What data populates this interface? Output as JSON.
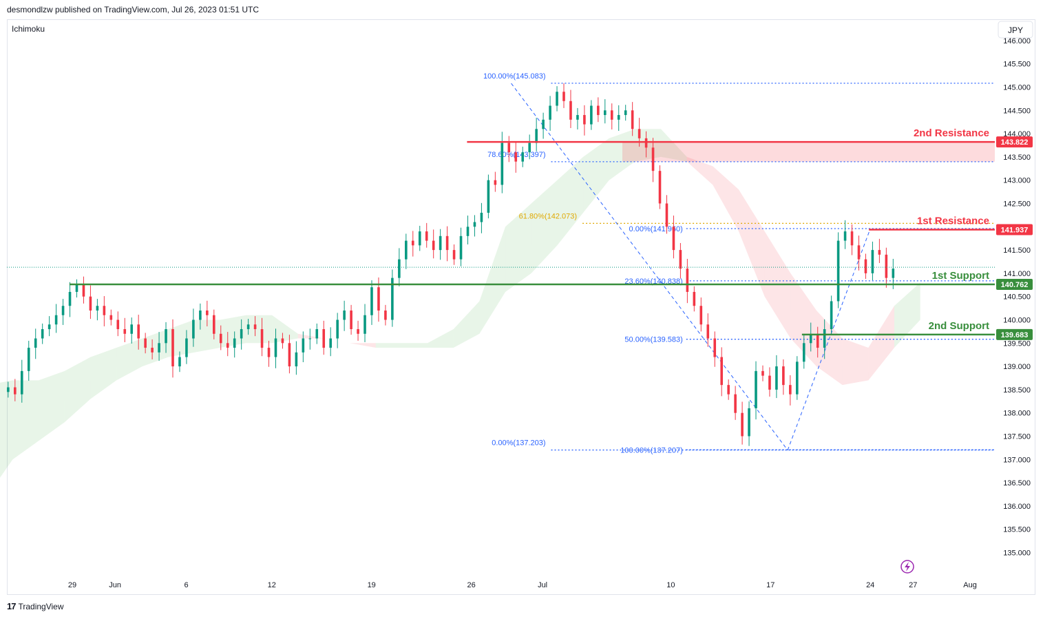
{
  "header": {
    "attribution": "desmondlzw published on TradingView.com, Jul 26, 2023 01:51 UTC"
  },
  "footer": {
    "brand": "TradingView",
    "logo": "17"
  },
  "chart_data": {
    "type": "candlestick",
    "indicator": "Ichimoku",
    "currency": "JPY",
    "ylim": [
      134.5,
      146.3
    ],
    "y_ticks": [
      "135.000",
      "135.500",
      "136.000",
      "136.500",
      "137.000",
      "137.500",
      "138.000",
      "138.500",
      "139.000",
      "139.500",
      "140.000",
      "140.500",
      "141.000",
      "141.500",
      "142.000",
      "142.500",
      "143.000",
      "143.500",
      "144.000",
      "144.500",
      "145.000",
      "145.500",
      "146.000"
    ],
    "x_ticks": [
      {
        "label": "29",
        "day": 0
      },
      {
        "label": "Jun",
        "day": 3
      },
      {
        "label": "6",
        "day": 8
      },
      {
        "label": "12",
        "day": 14
      },
      {
        "label": "19",
        "day": 21
      },
      {
        "label": "26",
        "day": 28
      },
      {
        "label": "Jul",
        "day": 33
      },
      {
        "label": "10",
        "day": 42
      },
      {
        "label": "17",
        "day": 49
      },
      {
        "label": "24",
        "day": 56
      },
      {
        "label": "27",
        "day": 59
      },
      {
        "label": "Aug",
        "day": 63
      }
    ],
    "last_price": 141.13,
    "levels": [
      {
        "name": "2nd Resistance",
        "value": 143.822,
        "badge": "143.822",
        "color": "#f23645"
      },
      {
        "name": "1st Resistance",
        "value": 141.937,
        "badge": "141.937",
        "color": "#f23645"
      },
      {
        "name": "1st Support",
        "value": 140.762,
        "badge": "140.762",
        "color": "#388e3c"
      },
      {
        "name": "2nd Support",
        "value": 139.683,
        "badge": "139.683",
        "color": "#388e3c"
      }
    ],
    "fib_down": [
      {
        "label": "100.00%(145.083)",
        "value": 145.083,
        "color": "#2962ff"
      },
      {
        "label": "78.60%(143.397)",
        "value": 143.397,
        "color": "#2962ff"
      },
      {
        "label": "61.80%(142.073)",
        "value": 142.073,
        "color": "#e0a800"
      },
      {
        "label": "0.00%(137.203)",
        "value": 137.203,
        "color": "#2962ff"
      }
    ],
    "fib_up": [
      {
        "label": "0.00%(141.960)",
        "value": 141.96,
        "color": "#2962ff"
      },
      {
        "label": "23.60%(140.838)",
        "value": 140.838,
        "color": "#2962ff"
      },
      {
        "label": "50.00%(139.583)",
        "value": 139.583,
        "color": "#2962ff"
      },
      {
        "label": "100.00%(137.207)",
        "value": 137.207,
        "color": "#2962ff"
      }
    ],
    "zigzag": [
      {
        "day": 30.8,
        "value": 145.08
      },
      {
        "day": 50.2,
        "value": 137.2
      },
      {
        "day": 56.0,
        "value": 141.96
      }
    ],
    "closes": [
      138.55,
      138.4,
      138.9,
      139.4,
      139.6,
      139.8,
      139.9,
      140.1,
      140.3,
      140.6,
      140.75,
      140.5,
      140.2,
      140.3,
      140.1,
      140.0,
      139.8,
      139.7,
      139.9,
      139.6,
      139.4,
      139.3,
      139.5,
      139.8,
      139.0,
      139.2,
      139.6,
      140.0,
      140.2,
      140.1,
      139.7,
      139.5,
      139.4,
      139.6,
      139.8,
      139.9,
      139.8,
      139.4,
      139.2,
      139.6,
      139.5,
      139.0,
      139.3,
      139.6,
      139.6,
      139.8,
      139.4,
      139.6,
      140.0,
      140.2,
      139.8,
      139.7,
      140.1,
      140.7,
      140.2,
      140.0,
      140.9,
      141.3,
      141.7,
      141.6,
      141.9,
      141.7,
      141.5,
      141.8,
      141.5,
      141.3,
      141.8,
      142.0,
      142.1,
      142.3,
      143.0,
      142.9,
      143.8,
      143.6,
      143.4,
      143.6,
      143.8,
      144.1,
      144.3,
      144.6,
      144.9,
      144.7,
      144.3,
      144.4,
      144.2,
      144.6,
      144.4,
      144.5,
      144.3,
      144.4,
      144.5,
      144.1,
      143.9,
      143.7,
      143.2,
      142.5,
      142.0,
      141.5,
      141.1,
      140.6,
      140.3,
      139.9,
      139.6,
      139.2,
      138.6,
      138.4,
      138.0,
      137.5,
      138.1,
      138.9,
      138.8,
      138.5,
      139.0,
      138.6,
      138.4,
      139.1,
      139.5,
      139.7,
      139.4,
      139.8,
      140.4,
      141.7,
      141.9,
      141.6,
      141.3,
      141.0,
      141.5,
      141.4,
      140.9,
      141.1
    ],
    "cloud": {
      "start_day": -6,
      "end_day": 59.5,
      "spans": [
        [
          136.2,
          138.6,
          "g"
        ],
        [
          137.0,
          138.7,
          "g"
        ],
        [
          137.4,
          138.7,
          "g"
        ],
        [
          137.8,
          138.9,
          "g"
        ],
        [
          138.3,
          139.2,
          "g"
        ],
        [
          138.7,
          139.4,
          "g"
        ],
        [
          139.0,
          139.6,
          "g"
        ],
        [
          139.2,
          139.8,
          "g"
        ],
        [
          139.3,
          140.0,
          "g"
        ],
        [
          139.4,
          140.0,
          "g"
        ],
        [
          139.5,
          140.1,
          "g"
        ],
        [
          139.5,
          140.1,
          "g"
        ],
        [
          139.6,
          139.7,
          "r"
        ],
        [
          139.6,
          139.6,
          "r"
        ],
        [
          139.5,
          139.5,
          "r"
        ],
        [
          139.4,
          139.5,
          "g"
        ],
        [
          139.4,
          139.5,
          "g"
        ],
        [
          139.4,
          139.5,
          "g"
        ],
        [
          139.4,
          139.8,
          "g"
        ],
        [
          139.7,
          140.4,
          "g"
        ],
        [
          140.6,
          142.0,
          "g"
        ],
        [
          141.0,
          142.5,
          "g"
        ],
        [
          141.6,
          143.0,
          "g"
        ],
        [
          142.3,
          143.5,
          "g"
        ],
        [
          143.0,
          143.9,
          "g"
        ],
        [
          143.4,
          144.1,
          "g"
        ],
        [
          143.5,
          144.1,
          "g"
        ],
        [
          143.4,
          143.5,
          "r"
        ],
        [
          142.9,
          143.3,
          "r"
        ],
        [
          141.9,
          142.8,
          "r"
        ],
        [
          140.5,
          141.9,
          "r"
        ],
        [
          139.6,
          141.0,
          "r"
        ],
        [
          139.0,
          140.2,
          "r"
        ],
        [
          138.6,
          139.6,
          "r"
        ],
        [
          138.7,
          139.4,
          "r"
        ],
        [
          139.4,
          140.3,
          "g"
        ],
        [
          140.0,
          140.8,
          "g"
        ]
      ]
    }
  }
}
